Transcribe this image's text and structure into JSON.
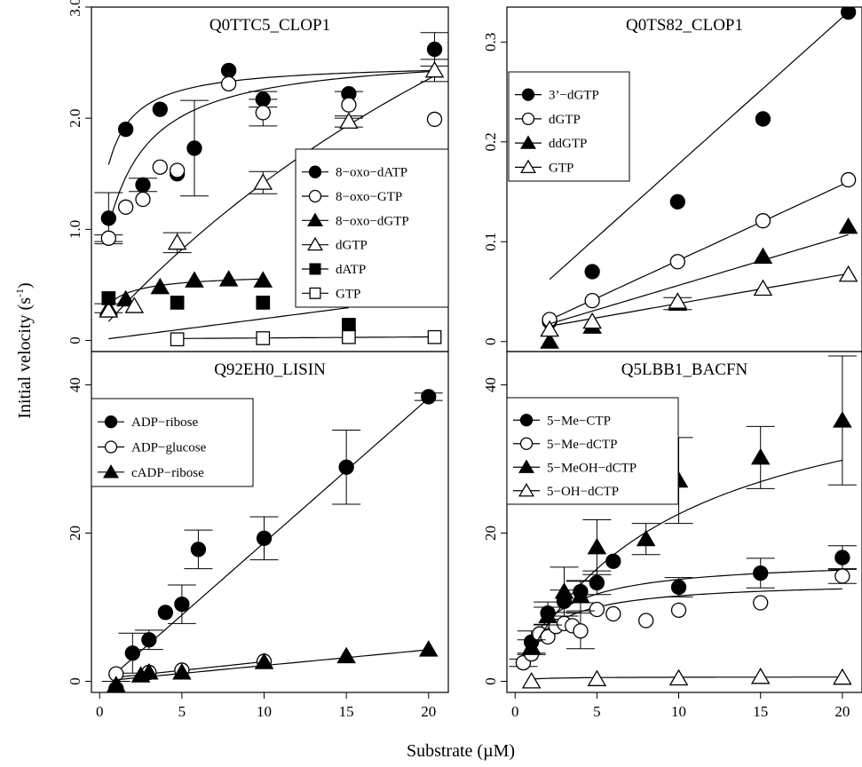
{
  "figure": {
    "x_axis_title": "Substrate (µM)",
    "y_axis_title_main": "Initial velocity (s",
    "y_axis_title_sup": "-1",
    "y_axis_title_end": ")"
  },
  "chart_data": [
    {
      "type": "scatter",
      "title": "Q0TTC5_CLOP1",
      "xlim": [
        0,
        20.8
      ],
      "ylim": [
        -0.1,
        3.0
      ],
      "x_ticks": [],
      "x_tick_labels": [],
      "y_ticks": [
        0,
        1.0,
        2.0,
        3.0
      ],
      "y_tick_labels": [
        "0",
        "1.0",
        "2.0",
        "3.0"
      ],
      "legend_position": "center-right",
      "series": [
        {
          "name": "8−oxo−dATP",
          "marker": "filled-circle",
          "x": [
            1,
            2,
            3,
            4,
            5,
            6,
            8,
            10,
            15,
            20
          ],
          "y": [
            1.1,
            1.9,
            1.4,
            2.08,
            1.5,
            1.73,
            2.43,
            2.17,
            2.22,
            2.62
          ],
          "err": [
            0.23,
            0,
            0.06,
            0,
            0,
            0.43,
            0,
            0.07,
            0,
            0.15
          ],
          "fit": {
            "model": "mm",
            "vmax": 2.5,
            "km": 0.58,
            "x0": 1,
            "x1": 20
          }
        },
        {
          "name": "8−oxo−GTP",
          "marker": "open-circle",
          "x": [
            1,
            2,
            3,
            4,
            5,
            8,
            10,
            15,
            20
          ],
          "y": [
            0.92,
            1.2,
            1.27,
            1.56,
            1.53,
            2.31,
            2.05,
            2.12,
            1.99
          ],
          "err": [
            0.03,
            0,
            0,
            0,
            0,
            0,
            0.12,
            0.12,
            0
          ],
          "fit": {
            "model": "mm",
            "vmax": 2.61,
            "km": 1.55,
            "x0": 1,
            "x1": 20
          }
        },
        {
          "name": "8−oxo−dGTP",
          "marker": "filled-triangle",
          "x": [
            1,
            2,
            4,
            6,
            8,
            10
          ],
          "y": [
            0.29,
            0.37,
            0.48,
            0.54,
            0.55,
            0.54
          ],
          "err": [
            0.04,
            0,
            0,
            0,
            0,
            0
          ],
          "fit": {
            "model": "mm",
            "vmax": 0.6,
            "km": 0.85,
            "x0": 1,
            "x1": 10
          }
        },
        {
          "name": "dGTP",
          "marker": "open-triangle",
          "x": [
            1,
            2.5,
            5,
            10,
            15,
            20
          ],
          "y": [
            0.27,
            0.31,
            0.88,
            1.42,
            1.97,
            2.43
          ],
          "err": [
            0,
            0,
            0.09,
            0.1,
            0.05,
            0.1
          ],
          "fit": {
            "model": "mm",
            "vmax": 7.5,
            "km": 43,
            "x0": 1,
            "x1": 20
          }
        },
        {
          "name": "dATP",
          "marker": "filled-square",
          "x": [
            1,
            5,
            10,
            15
          ],
          "y": [
            0.38,
            0.34,
            0.34,
            0.14
          ],
          "err": [
            0,
            0,
            0,
            0
          ],
          "fit": {
            "model": "line",
            "a": -0.005,
            "b": 0.02,
            "x0": 1,
            "x1": 15
          }
        },
        {
          "name": "GTP",
          "marker": "open-square",
          "x": [
            5,
            10,
            15,
            20
          ],
          "y": [
            0.01,
            0.02,
            0.03,
            0.03
          ],
          "err": [
            0,
            0,
            0,
            0
          ],
          "fit": {
            "model": "line",
            "a": 0.012,
            "b": 0.001,
            "x0": 5,
            "x1": 20
          }
        }
      ]
    },
    {
      "type": "scatter",
      "title": "Q0TS82_CLOP1",
      "xlim": [
        0,
        20.8
      ],
      "ylim": [
        -0.01,
        0.335
      ],
      "x_ticks": [],
      "x_tick_labels": [],
      "y_ticks": [
        0,
        0.1,
        0.2,
        0.3
      ],
      "y_tick_labels": [
        "0",
        "0.1",
        "0.2",
        "0.3"
      ],
      "legend_position": "top-left",
      "series": [
        {
          "name": "3’−dGTP",
          "marker": "filled-circle",
          "x": [
            2.5,
            5,
            10,
            15,
            20
          ],
          "y": [
            0.02,
            0.07,
            0.14,
            0.223,
            0.33
          ],
          "err": [
            0,
            0,
            0,
            0,
            0
          ],
          "fit": {
            "model": "line",
            "a": 0.024,
            "b": 0.0153,
            "x0": 2.5,
            "x1": 20
          }
        },
        {
          "name": "dGTP",
          "marker": "open-circle",
          "x": [
            2.5,
            5,
            10,
            15,
            20
          ],
          "y": [
            0.022,
            0.041,
            0.08,
            0.121,
            0.162
          ],
          "err": [
            0,
            0,
            0,
            0,
            0
          ],
          "fit": {
            "model": "line",
            "a": 0.002,
            "b": 0.0079,
            "x0": 2.5,
            "x1": 20
          }
        },
        {
          "name": "ddGTP",
          "marker": "filled-triangle",
          "x": [
            2.5,
            5,
            10,
            15,
            20
          ],
          "y": [
            0.0,
            0.015,
            0.038,
            0.085,
            0.115
          ],
          "err": [
            0,
            0,
            0.006,
            0,
            0
          ],
          "fit": {
            "model": "line",
            "a": 0.005,
            "b": 0.0051,
            "x0": 2.5,
            "x1": 20
          }
        },
        {
          "name": "GTP",
          "marker": "open-triangle",
          "x": [
            2.5,
            5,
            10,
            15,
            20
          ],
          "y": [
            0.012,
            0.02,
            0.04,
            0.053,
            0.067
          ],
          "err": [
            0,
            0,
            0,
            0,
            0
          ],
          "fit": {
            "model": "line",
            "a": 0.008,
            "b": 0.003,
            "x0": 2.5,
            "x1": 20
          }
        }
      ]
    },
    {
      "type": "scatter",
      "title": "Q92EH0_LISIN",
      "xlim": [
        -0.5,
        21.2
      ],
      "ylim": [
        -1.5,
        44.5
      ],
      "x_ticks": [
        0,
        5,
        10,
        15,
        20
      ],
      "x_tick_labels": [
        "0",
        "5",
        "10",
        "15",
        "20"
      ],
      "y_ticks": [
        0,
        20,
        40
      ],
      "y_tick_labels": [
        "0",
        "20",
        "40"
      ],
      "legend_position": "top-left",
      "series": [
        {
          "name": "ADP−ribose",
          "marker": "filled-circle",
          "x": [
            1,
            2,
            3,
            4,
            5,
            6,
            10,
            15,
            20
          ],
          "y": [
            -1,
            3.8,
            5.6,
            9.3,
            10.4,
            17.8,
            19.3,
            28.9,
            38.4
          ],
          "err": [
            1,
            2.7,
            1.3,
            0,
            2.6,
            2.6,
            2.9,
            5,
            0.5
          ],
          "fit": {
            "model": "line",
            "a": -0.8,
            "b": 1.95,
            "x0": 1,
            "x1": 20
          }
        },
        {
          "name": "ADP−glucose",
          "marker": "open-circle",
          "x": [
            1,
            3,
            5,
            10
          ],
          "y": [
            1,
            1.2,
            1.5,
            2.7
          ],
          "err": [
            0,
            0,
            0,
            0
          ],
          "fit": {
            "model": "line",
            "a": 0.3,
            "b": 0.235,
            "x0": 1,
            "x1": 10
          }
        },
        {
          "name": "cADP−ribose",
          "marker": "filled-triangle",
          "x": [
            1,
            2.5,
            3,
            5,
            10,
            15,
            20
          ],
          "y": [
            -0.5,
            0.8,
            1.2,
            1.2,
            2.6,
            3.4,
            4.3
          ],
          "err": [
            0,
            0,
            0,
            0,
            0,
            0,
            0
          ],
          "fit": {
            "model": "line",
            "a": 0.0,
            "b": 0.213,
            "x0": 1,
            "x1": 20
          }
        }
      ]
    },
    {
      "type": "scatter",
      "title": "Q5LBB1_BACFN",
      "xlim": [
        -0.5,
        21.2
      ],
      "ylim": [
        -1.5,
        44.5
      ],
      "x_ticks": [
        0,
        5,
        10,
        15,
        20
      ],
      "x_tick_labels": [
        "0",
        "5",
        "10",
        "15",
        "20"
      ],
      "y_ticks": [
        0,
        20,
        40
      ],
      "y_tick_labels": [
        "0",
        "20",
        "40"
      ],
      "legend_position": "top-left",
      "series": [
        {
          "name": "5−Me−CTP",
          "marker": "filled-circle",
          "x": [
            1,
            2,
            3,
            4,
            5,
            6,
            10,
            15,
            20
          ],
          "y": [
            5.3,
            9.2,
            10.8,
            12.1,
            13.3,
            16.2,
            12.7,
            14.6,
            16.7
          ],
          "err": [
            1.5,
            1.5,
            1.5,
            1.5,
            1.6,
            0,
            1.3,
            2,
            1.6
          ],
          "fit": {
            "model": "mm",
            "vmax": 16.5,
            "km": 2.0,
            "x0": 1,
            "x1": 20
          }
        },
        {
          "name": "5−Me−dCTP",
          "marker": "open-circle",
          "x": [
            0.5,
            1,
            1.5,
            2,
            2.5,
            3,
            3.5,
            4,
            5,
            6,
            8,
            10,
            15,
            20
          ],
          "y": [
            2.5,
            3.7,
            6.4,
            6,
            7.4,
            7.8,
            7.5,
            6.8,
            9.7,
            9.1,
            8.2,
            9.6,
            10.6,
            14.2
          ],
          "err": [
            0.5,
            0,
            0,
            0,
            0,
            0,
            0,
            2.4,
            0,
            0,
            0,
            0,
            0,
            1
          ],
          "fit": {
            "model": "mm",
            "vmax": 13.6,
            "km": 1.8,
            "x0": 1,
            "x1": 20
          }
        },
        {
          "name": "5−MeOH−dCTP",
          "marker": "filled-triangle",
          "x": [
            1,
            2,
            3,
            4,
            5,
            8,
            10,
            15,
            20
          ],
          "y": [
            4.6,
            8.8,
            12.1,
            11.5,
            18.1,
            19.2,
            27.1,
            30.2,
            35.2
          ],
          "err": [
            1,
            1.2,
            3.3,
            2,
            3.7,
            2.1,
            5.8,
            4.2,
            8.7
          ],
          "fit": {
            "model": "mm",
            "vmax": 44,
            "km": 9.5,
            "x0": 1,
            "x1": 20
          }
        },
        {
          "name": "5−OH−dCTP",
          "marker": "open-triangle",
          "x": [
            1,
            5,
            10,
            15,
            20
          ],
          "y": [
            0,
            0.3,
            0.4,
            0.6,
            0.5
          ],
          "err": [
            0,
            0,
            0,
            0,
            0
          ],
          "fit": {
            "model": "mm",
            "vmax": 0.6,
            "km": 1.0,
            "x0": 1,
            "x1": 20
          }
        }
      ]
    }
  ]
}
